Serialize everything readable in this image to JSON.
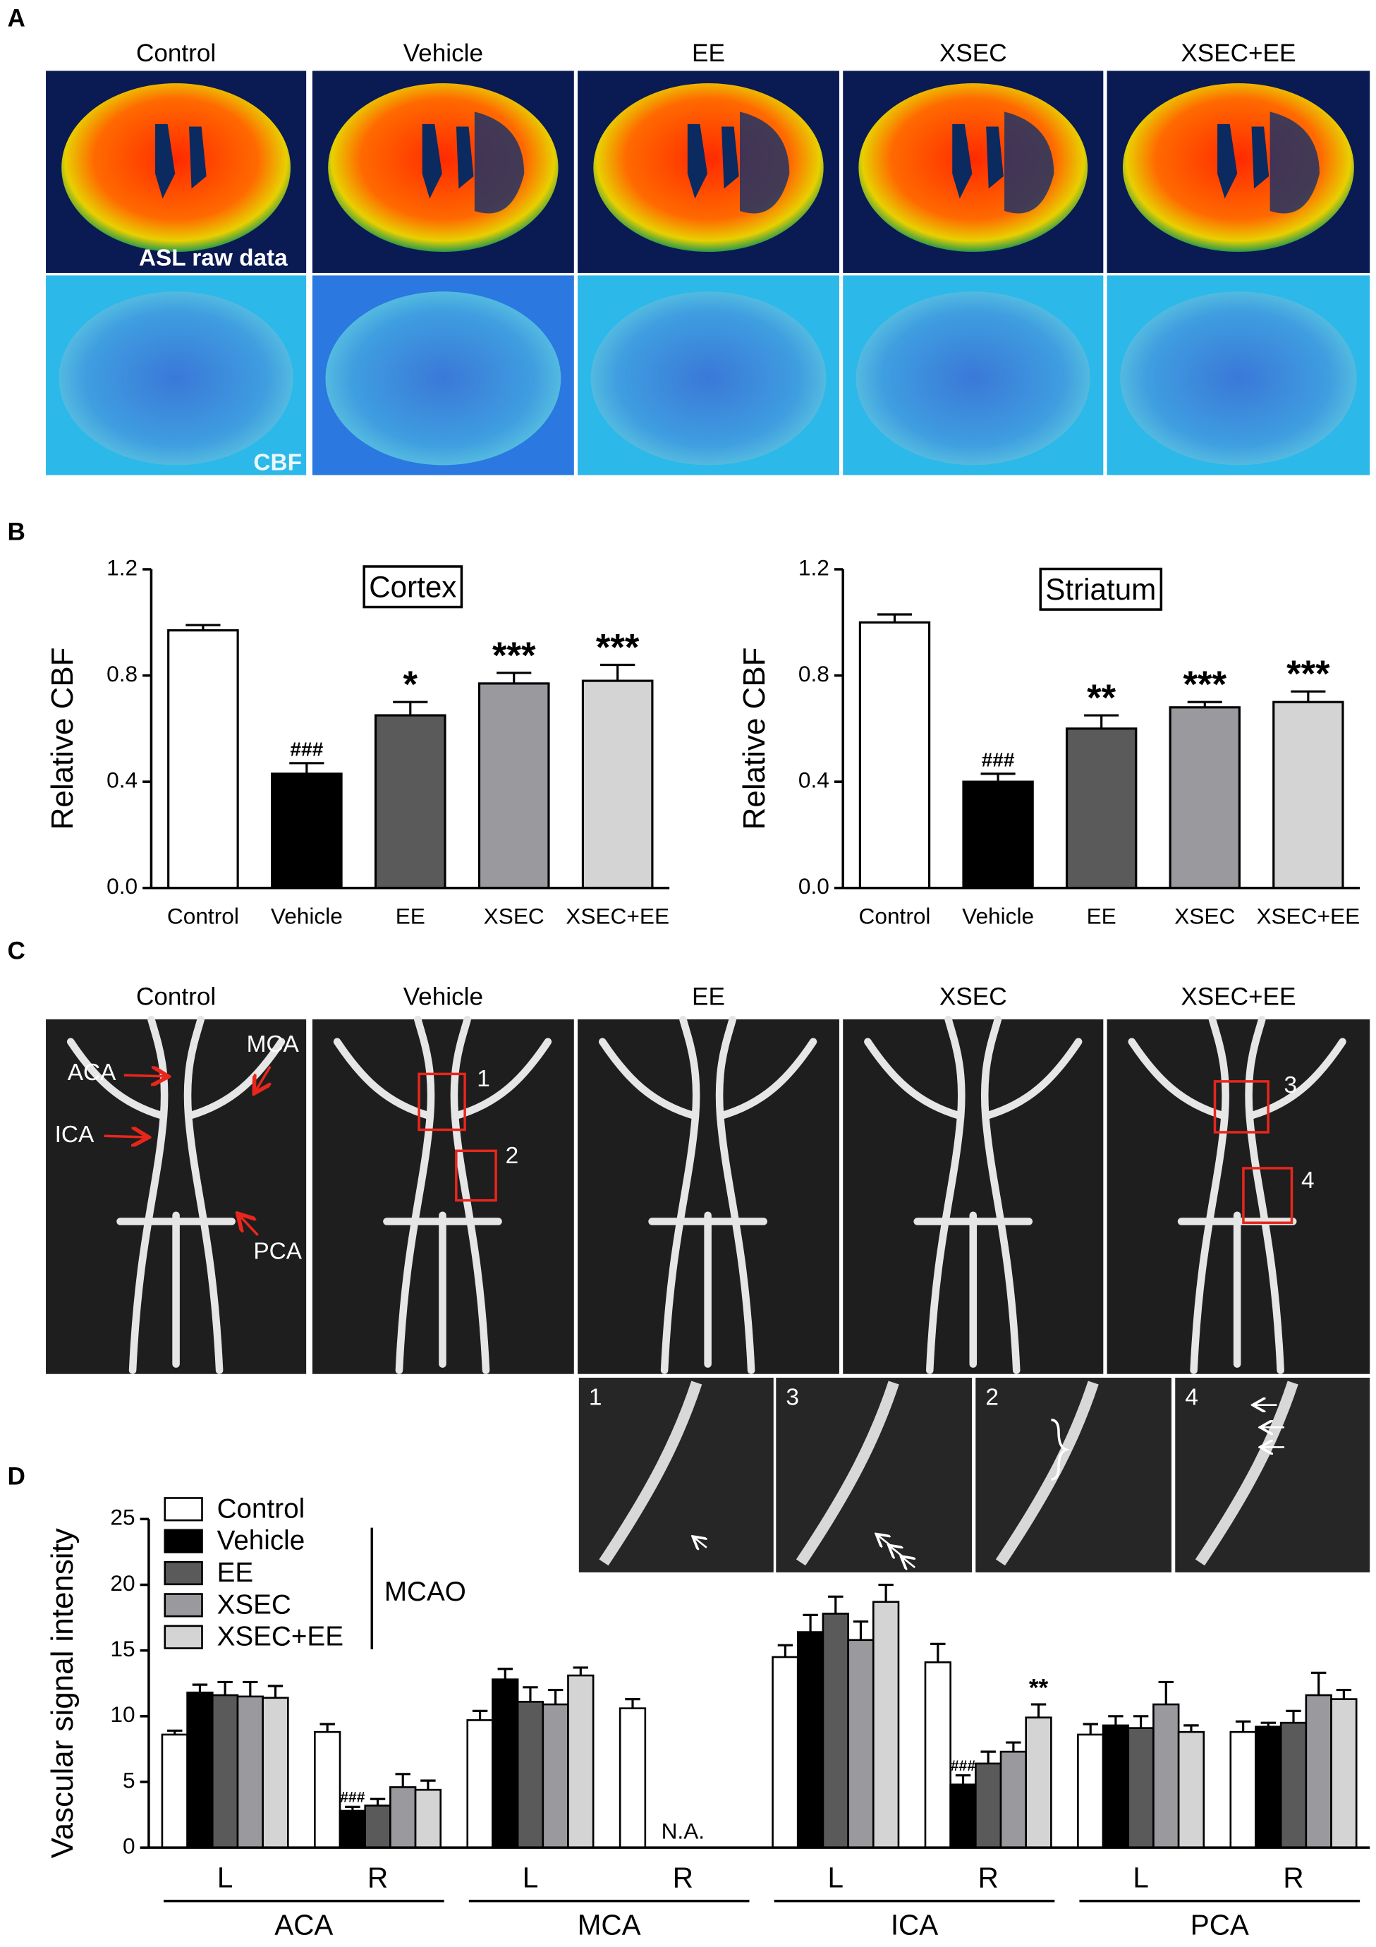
{
  "panel_a": {
    "label": "A",
    "columns": [
      "Control",
      "Vehicle",
      "EE",
      "XSEC",
      "XSEC+EE"
    ],
    "row_labels": [
      "ASL raw data",
      "CBF"
    ]
  },
  "panel_b": {
    "label": "B"
  },
  "panel_c": {
    "label": "C",
    "columns": [
      "Control",
      "Vehicle",
      "EE",
      "XSEC",
      "XSEC+EE"
    ],
    "vessel_labels": [
      "ACA",
      "MCA",
      "ICA",
      "PCA"
    ],
    "box_labels": [
      "1",
      "2",
      "3",
      "4"
    ],
    "inset_labels": [
      "1",
      "3",
      "2",
      "4"
    ]
  },
  "panel_d": {
    "label": "D"
  },
  "chart_data": [
    {
      "type": "bar",
      "title": "Cortex",
      "ylabel": "Relative CBF",
      "categories": [
        "Control",
        "Vehicle",
        "EE",
        "XSEC",
        "XSEC+EE"
      ],
      "values": [
        0.97,
        0.43,
        0.65,
        0.77,
        0.78
      ],
      "errors": [
        0.02,
        0.04,
        0.05,
        0.04,
        0.06
      ],
      "colors": [
        "#ffffff",
        "#000000",
        "#5a5a5a",
        "#9a9a9e",
        "#d4d4d4"
      ],
      "annotations": [
        null,
        "###",
        "*",
        "***",
        "***"
      ],
      "ylim": [
        0,
        1.2
      ],
      "yticks": [
        {
          "value": 0,
          "label": "0.0"
        },
        0.4,
        0.8,
        1.2
      ]
    },
    {
      "type": "bar",
      "title": "Striatum",
      "ylabel": "Relative CBF",
      "categories": [
        "Control",
        "Vehicle",
        "EE",
        "XSEC",
        "XSEC+EE"
      ],
      "values": [
        1.0,
        0.4,
        0.6,
        0.68,
        0.7
      ],
      "errors": [
        0.03,
        0.03,
        0.05,
        0.02,
        0.04
      ],
      "colors": [
        "#ffffff",
        "#000000",
        "#5a5a5a",
        "#9a9a9e",
        "#d4d4d4"
      ],
      "annotations": [
        null,
        "###",
        "**",
        "***",
        "***"
      ],
      "ylim": [
        0,
        1.2
      ],
      "yticks": [
        {
          "value": 0,
          "label": "0.0"
        },
        0.4,
        0.8,
        1.2
      ]
    },
    {
      "type": "grouped_bar",
      "ylabel": "Vascular signal intensity",
      "categories": [
        "L",
        "R",
        "L",
        "R",
        "L",
        "R",
        "L",
        "R"
      ],
      "groups": [
        "ACA",
        "MCA",
        "ICA",
        "PCA"
      ],
      "category_notes": [
        null,
        null,
        null,
        "N.A.",
        null,
        null,
        null,
        null
      ],
      "legend_group_label": "MCAO",
      "series": [
        {
          "name": "Control",
          "color": "#ffffff",
          "values": [
            8.6,
            8.8,
            9.7,
            10.6,
            14.5,
            14.1,
            8.6,
            8.8
          ],
          "errors": [
            0.3,
            0.6,
            0.7,
            0.7,
            0.9,
            1.4,
            0.8,
            0.8
          ]
        },
        {
          "name": "Vehicle",
          "color": "#000000",
          "values": [
            11.8,
            2.8,
            12.8,
            null,
            16.4,
            4.8,
            9.3,
            9.2
          ],
          "errors": [
            0.6,
            0.3,
            0.8,
            null,
            1.3,
            0.7,
            0.7,
            0.3
          ],
          "annotations": [
            null,
            "###",
            null,
            null,
            null,
            "###",
            null,
            null
          ]
        },
        {
          "name": "EE",
          "color": "#5a5a5a",
          "values": [
            11.6,
            3.2,
            11.1,
            null,
            17.8,
            6.4,
            9.1,
            9.5
          ],
          "errors": [
            1.0,
            0.5,
            1.1,
            null,
            1.3,
            0.9,
            0.9,
            0.9
          ]
        },
        {
          "name": "XSEC",
          "color": "#9a9a9e",
          "values": [
            11.5,
            4.6,
            10.9,
            null,
            15.8,
            7.3,
            10.9,
            11.6
          ],
          "errors": [
            1.1,
            1.0,
            1.1,
            null,
            1.4,
            0.7,
            1.7,
            1.7
          ]
        },
        {
          "name": "XSEC+EE",
          "color": "#d4d4d4",
          "values": [
            11.4,
            4.4,
            13.1,
            null,
            18.7,
            9.9,
            8.8,
            11.3
          ],
          "errors": [
            0.9,
            0.7,
            0.6,
            null,
            1.3,
            1.0,
            0.5,
            0.7
          ],
          "annotations": [
            null,
            null,
            null,
            null,
            null,
            "**",
            null,
            null
          ]
        }
      ],
      "ylim": [
        0,
        25
      ],
      "yticks": [
        0,
        5,
        10,
        15,
        20,
        25
      ]
    }
  ]
}
